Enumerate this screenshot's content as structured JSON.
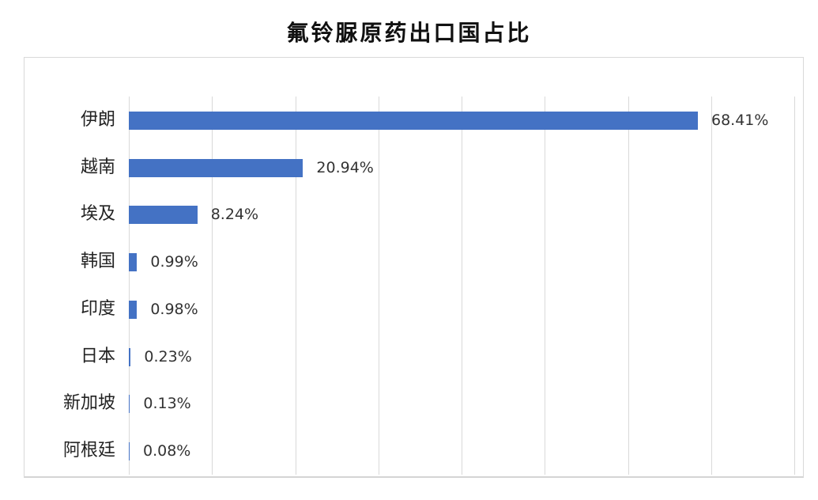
{
  "title": "氟铃脲原药出口国占比",
  "colors": {
    "bar": "#4472c4",
    "grid": "#d9d9d9"
  },
  "chart_data": {
    "type": "bar",
    "orientation": "horizontal",
    "title": "氟铃脲原药出口国占比",
    "categories": [
      "伊朗",
      "越南",
      "埃及",
      "韩国",
      "印度",
      "日本",
      "新加坡",
      "阿根廷"
    ],
    "values": [
      68.41,
      20.94,
      8.24,
      0.99,
      0.98,
      0.23,
      0.13,
      0.08
    ],
    "labels": [
      "68.41%",
      "20.94%",
      "8.24%",
      "0.99%",
      "0.98%",
      "0.23%",
      "0.13%",
      "0.08%"
    ],
    "xlabel": "",
    "ylabel": "",
    "xlim": [
      0,
      80
    ],
    "grid": true,
    "grid_step": 10,
    "x_tick_labels_visible": false,
    "legend": null,
    "unit": "%"
  }
}
